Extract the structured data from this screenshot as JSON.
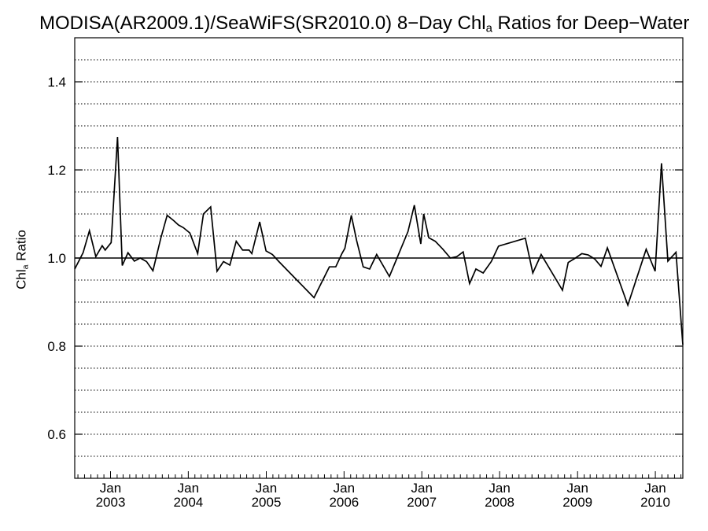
{
  "chart_data": {
    "type": "line",
    "title": {
      "prefix": "MODISA(AR2009.1)/SeaWiFS(SR2010.0) 8−Day Chl",
      "sub": "a",
      "suffix": " Ratios for Deep−Water"
    },
    "ylabel": {
      "prefix": "Chl",
      "sub": "a",
      "suffix": " Ratio"
    },
    "xlim": [
      "2002-07-17",
      "2010-05-10"
    ],
    "ylim": [
      0.5,
      1.5
    ],
    "x_ticks": [
      {
        "date": "2003-01-01",
        "month": "Jan",
        "year": "2003"
      },
      {
        "date": "2004-01-01",
        "month": "Jan",
        "year": "2004"
      },
      {
        "date": "2005-01-01",
        "month": "Jan",
        "year": "2005"
      },
      {
        "date": "2006-01-01",
        "month": "Jan",
        "year": "2006"
      },
      {
        "date": "2007-01-01",
        "month": "Jan",
        "year": "2007"
      },
      {
        "date": "2008-01-01",
        "month": "Jan",
        "year": "2008"
      },
      {
        "date": "2009-01-01",
        "month": "Jan",
        "year": "2009"
      },
      {
        "date": "2010-01-01",
        "month": "Jan",
        "year": "2010"
      }
    ],
    "y_ticks": [
      {
        "value": 0.6,
        "label": "0.6"
      },
      {
        "value": 0.8,
        "label": "0.8"
      },
      {
        "value": 1.0,
        "label": "1.0"
      },
      {
        "value": 1.2,
        "label": "1.2"
      },
      {
        "value": 1.4,
        "label": "1.4"
      }
    ],
    "grid": "horizontal dotted every 0.05",
    "reference_line": 1.0,
    "series": [
      {
        "color": "#000000",
        "points": [
          [
            "2002-07-17",
            0.975
          ],
          [
            "2002-08-25",
            1.012
          ],
          [
            "2002-09-24",
            1.062
          ],
          [
            "2002-10-24",
            1.003
          ],
          [
            "2002-11-23",
            1.028
          ],
          [
            "2002-12-07",
            1.018
          ],
          [
            "2003-01-04",
            1.035
          ],
          [
            "2003-02-03",
            1.275
          ],
          [
            "2003-02-25",
            0.983
          ],
          [
            "2003-03-24",
            1.012
          ],
          [
            "2003-04-23",
            0.993
          ],
          [
            "2003-05-20",
            1.0
          ],
          [
            "2003-06-19",
            0.992
          ],
          [
            "2003-07-19",
            0.971
          ],
          [
            "2003-08-25",
            1.045
          ],
          [
            "2003-09-24",
            1.097
          ],
          [
            "2003-10-24",
            1.085
          ],
          [
            "2003-11-16",
            1.075
          ],
          [
            "2003-12-09",
            1.069
          ],
          [
            "2004-01-08",
            1.057
          ],
          [
            "2004-02-14",
            1.01
          ],
          [
            "2004-03-12",
            1.1
          ],
          [
            "2004-04-15",
            1.116
          ],
          [
            "2004-05-15",
            0.97
          ],
          [
            "2004-06-14",
            0.992
          ],
          [
            "2004-07-14",
            0.984
          ],
          [
            "2004-08-13",
            1.038
          ],
          [
            "2004-09-12",
            1.018
          ],
          [
            "2004-10-12",
            1.018
          ],
          [
            "2004-10-25",
            1.01
          ],
          [
            "2004-12-01",
            1.082
          ],
          [
            "2004-12-31",
            1.016
          ],
          [
            "2005-01-30",
            1.008
          ],
          [
            "2005-03-01",
            0.992
          ],
          [
            "2005-08-13",
            0.91
          ],
          [
            "2005-10-24",
            0.98
          ],
          [
            "2005-11-23",
            0.98
          ],
          [
            "2005-12-22",
            1.01
          ],
          [
            "2006-01-05",
            1.022
          ],
          [
            "2006-02-04",
            1.097
          ],
          [
            "2006-03-01",
            1.04
          ],
          [
            "2006-04-01",
            0.98
          ],
          [
            "2006-05-01",
            0.975
          ],
          [
            "2006-06-03",
            1.008
          ],
          [
            "2006-08-02",
            0.958
          ],
          [
            "2006-10-28",
            1.06
          ],
          [
            "2006-11-27",
            1.12
          ],
          [
            "2006-12-27",
            1.032
          ],
          [
            "2007-01-10",
            1.1
          ],
          [
            "2007-02-03",
            1.046
          ],
          [
            "2007-03-05",
            1.038
          ],
          [
            "2007-04-10",
            1.02
          ],
          [
            "2007-05-15",
            1.0
          ],
          [
            "2007-06-14",
            1.003
          ],
          [
            "2007-07-14",
            1.014
          ],
          [
            "2007-08-13",
            0.942
          ],
          [
            "2007-09-12",
            0.975
          ],
          [
            "2007-10-16",
            0.966
          ],
          [
            "2007-11-23",
            0.992
          ],
          [
            "2007-12-27",
            1.027
          ],
          [
            "2008-05-01",
            1.045
          ],
          [
            "2008-06-05",
            0.966
          ],
          [
            "2008-07-14",
            1.008
          ],
          [
            "2008-10-22",
            0.927
          ],
          [
            "2008-11-18",
            0.99
          ],
          [
            "2008-12-22",
            1.0
          ],
          [
            "2009-01-21",
            1.01
          ],
          [
            "2009-02-20",
            1.007
          ],
          [
            "2009-03-22",
            0.998
          ],
          [
            "2009-04-21",
            0.981
          ],
          [
            "2009-05-21",
            1.023
          ],
          [
            "2009-08-25",
            0.893
          ],
          [
            "2009-11-19",
            1.02
          ],
          [
            "2009-12-31",
            0.97
          ],
          [
            "2010-01-30",
            1.215
          ],
          [
            "2010-03-01",
            0.993
          ],
          [
            "2010-04-08",
            1.013
          ],
          [
            "2010-05-10",
            0.803
          ]
        ]
      }
    ]
  }
}
